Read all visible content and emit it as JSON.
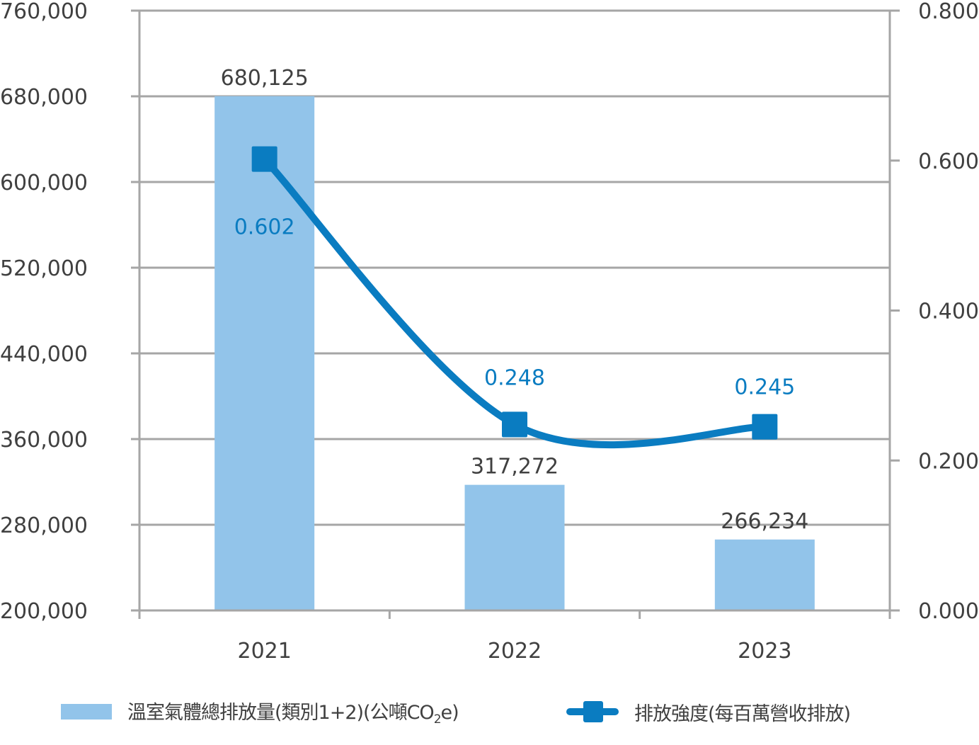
{
  "chart_data": {
    "type": "bar+line",
    "title": "",
    "categories": [
      "2021",
      "2022",
      "2023"
    ],
    "series": [
      {
        "name": "溫室氣體總排放量(類別1+2)(公噸CO2e)",
        "type": "bar",
        "axis": "left",
        "color": "#92c4ea",
        "values": [
          680125,
          317272,
          266234
        ],
        "labels": [
          "680,125",
          "317,272",
          "266,234"
        ]
      },
      {
        "name": "排放強度(每百萬營收排放)",
        "type": "line",
        "axis": "right",
        "color": "#0a7cc1",
        "marker": "square",
        "smooth": true,
        "values": [
          0.602,
          0.248,
          0.245
        ],
        "labels": [
          "0.602",
          "0.248",
          "0.245"
        ]
      }
    ],
    "left_axis": {
      "ylim": [
        200000,
        760000
      ],
      "ticks": [
        200000,
        280000,
        360000,
        440000,
        520000,
        600000,
        680000,
        760000
      ],
      "tick_labels": [
        "200,000",
        "280,000",
        "360,000",
        "440,000",
        "520,000",
        "600,000",
        "680,000",
        "760,000"
      ]
    },
    "right_axis": {
      "ylim": [
        0,
        0.8
      ],
      "ticks": [
        0,
        0.2,
        0.4,
        0.6,
        0.8
      ],
      "tick_labels": [
        "0.000",
        "0.200",
        "0.400",
        "0.600",
        "0.800"
      ]
    },
    "xlabel": "",
    "ylabel": "",
    "grid": true,
    "legend_position": "bottom"
  },
  "legend": {
    "bar_label_main": "溫室氣體總排放量(類別1+2)(公噸CO",
    "bar_label_sub": "2",
    "bar_label_end": "e)",
    "line_label": "排放強度(每百萬營收排放)"
  },
  "colors": {
    "bar": "#92c4ea",
    "line": "#0a7cc1",
    "grid": "#a6a6a6",
    "text": "#404040",
    "line_label": "#0a7cc1"
  }
}
